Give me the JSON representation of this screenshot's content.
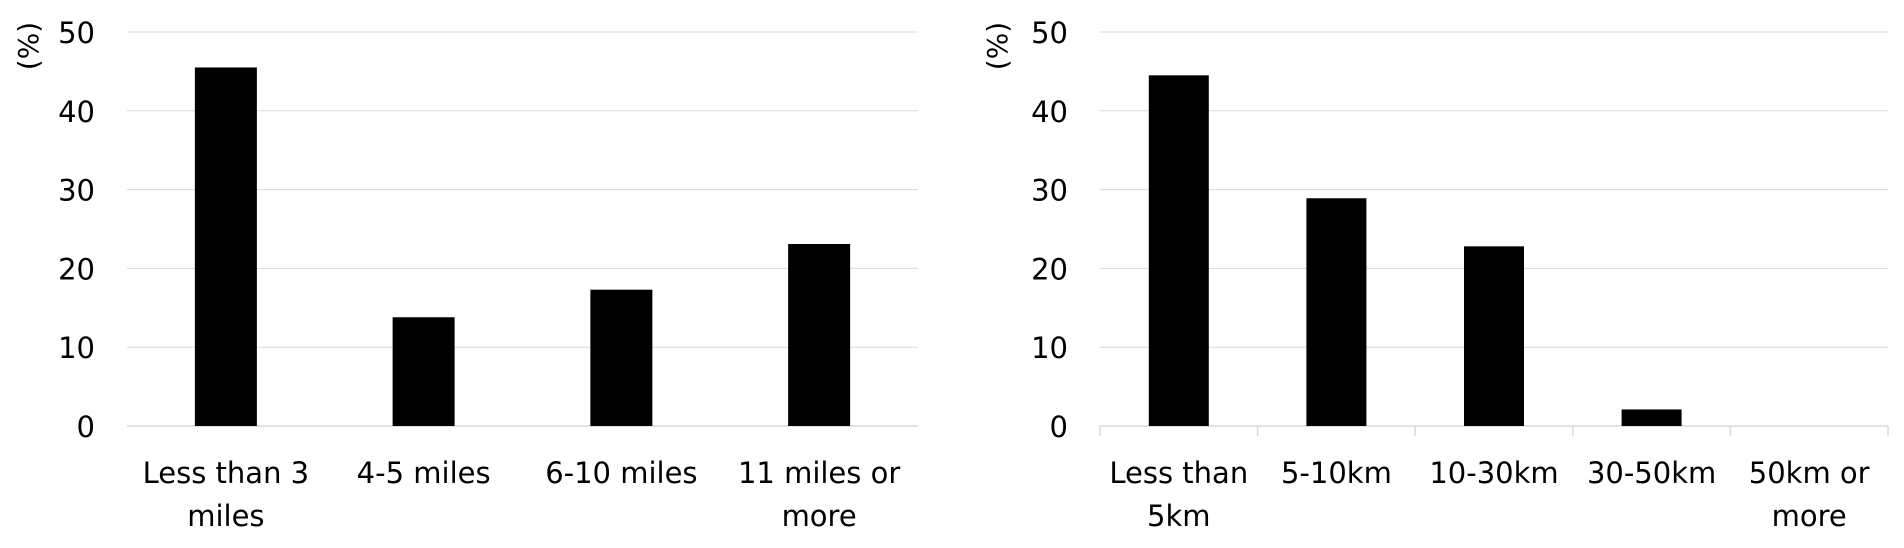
{
  "chart_data": [
    {
      "type": "bar",
      "ylabel": "(%)",
      "ylim": [
        0,
        50
      ],
      "yticks": [
        "0",
        "10",
        "20",
        "30",
        "40",
        "50"
      ],
      "grid": true,
      "bar_color": "#000000",
      "categories": [
        [
          "Less than 3",
          "miles"
        ],
        [
          "4-5 miles"
        ],
        [
          "6-10 miles"
        ],
        [
          "11 miles or",
          "more"
        ]
      ],
      "values": [
        45.5,
        13.8,
        17.3,
        23.1
      ]
    },
    {
      "type": "bar",
      "ylabel": "(%)",
      "ylim": [
        0,
        50
      ],
      "yticks": [
        "0",
        "10",
        "20",
        "30",
        "40",
        "50"
      ],
      "grid": true,
      "bar_color": "#000000",
      "categories": [
        [
          "Less than",
          "5km"
        ],
        [
          "5-10km"
        ],
        [
          "10-30km"
        ],
        [
          "30-50km"
        ],
        [
          "50km or",
          "more"
        ]
      ],
      "values": [
        44.5,
        28.9,
        22.8,
        2.1,
        0
      ]
    }
  ]
}
